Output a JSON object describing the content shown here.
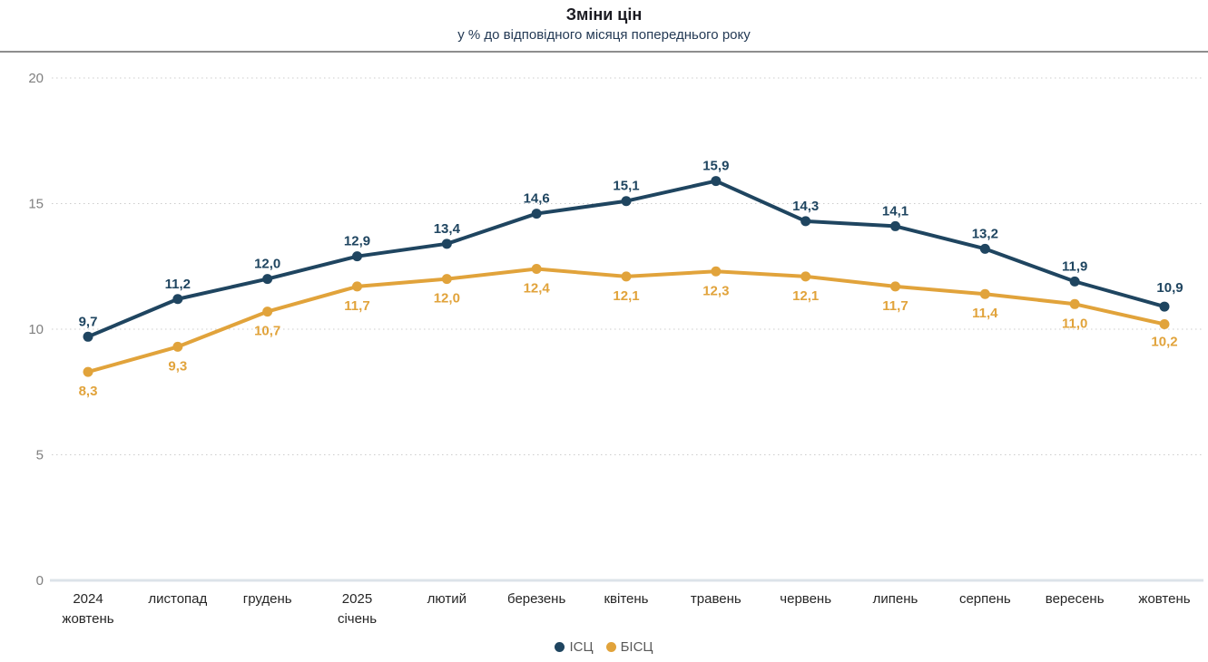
{
  "header": {
    "title": "Зміни цін",
    "subtitle": "у % до відповідного місяця попереднього року"
  },
  "chart_data": {
    "type": "line",
    "title": "Зміни цін",
    "subtitle": "у % до відповідного місяця попереднього року",
    "categories": [
      [
        "2024",
        "жовтень"
      ],
      [
        "листопад"
      ],
      [
        "грудень"
      ],
      [
        "2025",
        "січень"
      ],
      [
        "лютий"
      ],
      [
        "березень"
      ],
      [
        "квітень"
      ],
      [
        "травень"
      ],
      [
        "червень"
      ],
      [
        "липень"
      ],
      [
        "серпень"
      ],
      [
        "вересень"
      ],
      [
        "жовтень"
      ]
    ],
    "series": [
      {
        "name": "ІСЦ",
        "color": "#1f4560",
        "values": [
          9.7,
          11.2,
          12.0,
          12.9,
          13.4,
          14.6,
          15.1,
          15.9,
          14.3,
          14.1,
          13.2,
          11.9,
          10.9
        ],
        "label_position": "above"
      },
      {
        "name": "БІСЦ",
        "color": "#e1a33b",
        "values": [
          8.3,
          9.3,
          10.7,
          11.7,
          12.0,
          12.4,
          12.1,
          12.3,
          12.1,
          11.7,
          11.4,
          11.0,
          10.2
        ],
        "label_position": "below"
      }
    ],
    "decimal_separator": ",",
    "emphasize_last_label": true,
    "ylim": [
      0,
      20
    ],
    "yticks": [
      0,
      5,
      10,
      15,
      20
    ],
    "grid": "dotted horizontal",
    "legend_position": "bottom"
  },
  "legend": {
    "items": [
      {
        "label": "ІСЦ",
        "color": "#1f4560"
      },
      {
        "label": "БІСЦ",
        "color": "#e1a33b"
      }
    ]
  },
  "colors": {
    "series_icp": "#1f4560",
    "series_bicp": "#e1a33b",
    "gridline": "#cccccc",
    "baseline": "#dce3e9",
    "separator": "#8e8e8e",
    "y_tick_text": "#7f7f7f",
    "x_tick_text": "#262626",
    "legend_text": "#595959"
  }
}
